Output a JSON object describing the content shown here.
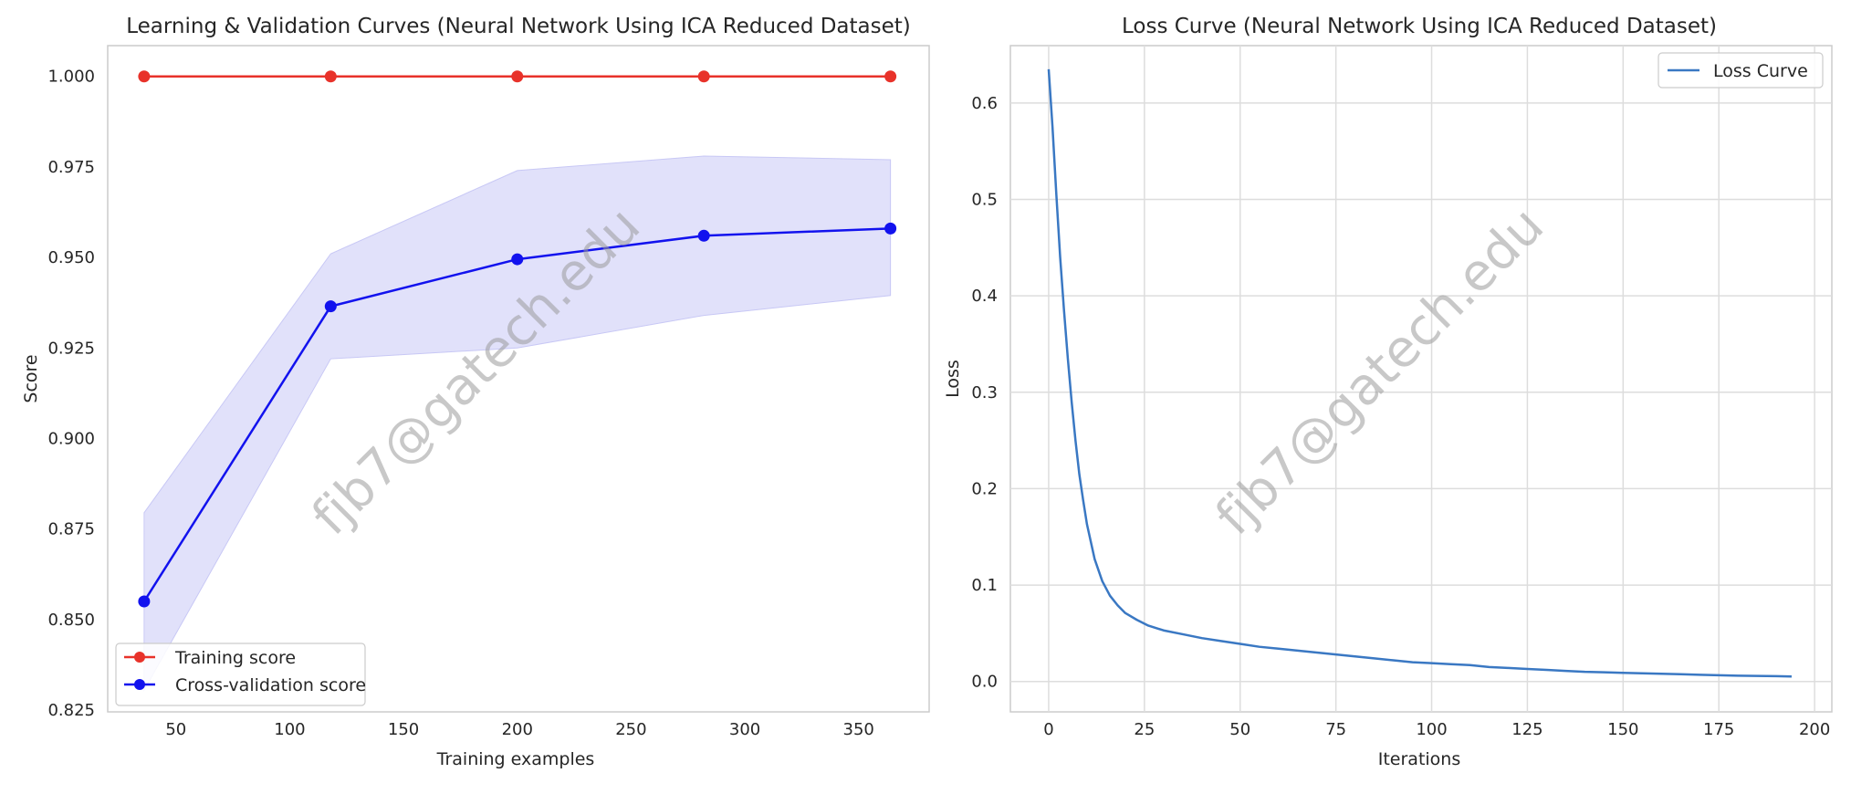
{
  "watermark": "fjb7@gatech.edu",
  "chart_data": [
    {
      "type": "line",
      "title": "Learning & Validation Curves (Neural Network Using ICA Reduced Dataset)",
      "xlabel": "Training examples",
      "ylabel": "Score",
      "xlim": [
        20,
        381
      ],
      "ylim": [
        0.8245,
        1.0085
      ],
      "xticks": [
        50,
        100,
        150,
        200,
        250,
        300,
        350
      ],
      "yticks": [
        0.825,
        0.85,
        0.875,
        0.9,
        0.925,
        0.95,
        0.975,
        1.0
      ],
      "ytick_labels": [
        "0.825",
        "0.850",
        "0.875",
        "0.900",
        "0.925",
        "0.950",
        "0.975",
        "1.000"
      ],
      "grid": false,
      "legend_position": "lower-left",
      "x": [
        36,
        118,
        200,
        282,
        364
      ],
      "series": [
        {
          "name": "Training score",
          "values": [
            1.0,
            1.0,
            1.0,
            1.0,
            1.0
          ],
          "color": "#e8322a",
          "marker": "circle"
        },
        {
          "name": "Cross-validation score",
          "values": [
            0.855,
            0.9365,
            0.9495,
            0.956,
            0.958
          ],
          "color": "#1212ee",
          "marker": "circle",
          "band_upper": [
            0.8795,
            0.951,
            0.974,
            0.978,
            0.977
          ],
          "band_lower": [
            0.8305,
            0.922,
            0.925,
            0.934,
            0.9395
          ],
          "band_color": "#c8c8f5"
        }
      ]
    },
    {
      "type": "line",
      "title": "Loss Curve (Neural Network Using ICA Reduced Dataset)",
      "xlabel": "Iterations",
      "ylabel": "Loss",
      "xlim": [
        -10,
        204.5
      ],
      "ylim": [
        -0.0315,
        0.6595
      ],
      "xticks": [
        0,
        25,
        50,
        75,
        100,
        125,
        150,
        175,
        200
      ],
      "yticks": [
        0.0,
        0.1,
        0.2,
        0.3,
        0.4,
        0.5,
        0.6
      ],
      "ytick_labels": [
        "0.0",
        "0.1",
        "0.2",
        "0.3",
        "0.4",
        "0.5",
        "0.6"
      ],
      "grid": true,
      "legend_position": "top-right",
      "series": [
        {
          "name": "Loss Curve",
          "color": "#3a78c3",
          "x": [
            0,
            1,
            2,
            3,
            4,
            5,
            6,
            7,
            8,
            9,
            10,
            12,
            14,
            16,
            18,
            20,
            23,
            26,
            30,
            35,
            40,
            45,
            50,
            55,
            60,
            65,
            70,
            75,
            80,
            85,
            90,
            95,
            100,
            105,
            110,
            115,
            120,
            125,
            130,
            135,
            140,
            145,
            150,
            155,
            160,
            165,
            170,
            175,
            180,
            185,
            190,
            194
          ],
          "values": [
            0.635,
            0.575,
            0.505,
            0.44,
            0.385,
            0.335,
            0.29,
            0.25,
            0.215,
            0.188,
            0.163,
            0.127,
            0.104,
            0.089,
            0.079,
            0.071,
            0.064,
            0.058,
            0.053,
            0.049,
            0.045,
            0.042,
            0.039,
            0.036,
            0.034,
            0.032,
            0.03,
            0.028,
            0.026,
            0.024,
            0.022,
            0.02,
            0.019,
            0.018,
            0.017,
            0.015,
            0.014,
            0.013,
            0.012,
            0.011,
            0.01,
            0.0095,
            0.009,
            0.0085,
            0.008,
            0.0075,
            0.007,
            0.0065,
            0.006,
            0.0058,
            0.0055,
            0.0052
          ]
        }
      ]
    }
  ]
}
